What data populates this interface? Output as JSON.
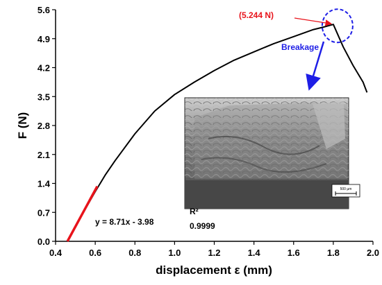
{
  "chart_data": {
    "type": "line",
    "xlabel": "displacement ε (mm)",
    "ylabel": "F (N)",
    "xlim": [
      0.4,
      2.0
    ],
    "ylim": [
      0.0,
      5.6
    ],
    "xticks": [
      "0.4",
      "0.6",
      "0.8",
      "1.0",
      "1.2",
      "1.4",
      "1.6",
      "1.8",
      "2.0"
    ],
    "yticks": [
      "0.0",
      "0.7",
      "1.4",
      "2.1",
      "2.8",
      "3.5",
      "4.2",
      "4.9",
      "5.6"
    ],
    "grid": false,
    "series": [
      {
        "color": "#000000",
        "x": [
          0.46,
          0.5,
          0.55,
          0.6,
          0.65,
          0.7,
          0.8,
          0.9,
          1.0,
          1.1,
          1.2,
          1.3,
          1.4,
          1.5,
          1.6,
          1.7,
          1.75,
          1.8,
          1.85,
          1.9,
          1.95,
          1.97
        ],
        "y": [
          0.0,
          0.35,
          0.78,
          1.2,
          1.6,
          1.95,
          2.6,
          3.15,
          3.55,
          3.85,
          4.13,
          4.38,
          4.58,
          4.78,
          4.95,
          5.12,
          5.18,
          5.244,
          4.7,
          4.25,
          3.85,
          3.6
        ]
      },
      {
        "color": "#e8131b",
        "x": [
          0.46,
          0.61
        ],
        "y": [
          0.0,
          1.33
        ]
      }
    ],
    "annotations": {
      "peak_label": "(5.244 N)",
      "peak_x": 1.8,
      "peak_y": 5.244,
      "breakage_label": "Breakage",
      "fit_equation": "y = 8.71x - 3.98",
      "r2_label": "R²",
      "r2_value": "0.9999"
    },
    "inset": {
      "scale_bar_label": "500 µm"
    },
    "colors": {
      "peak_label": "#e8131b",
      "breakage": "#1e1ee6",
      "fit": "#e8131b"
    }
  }
}
